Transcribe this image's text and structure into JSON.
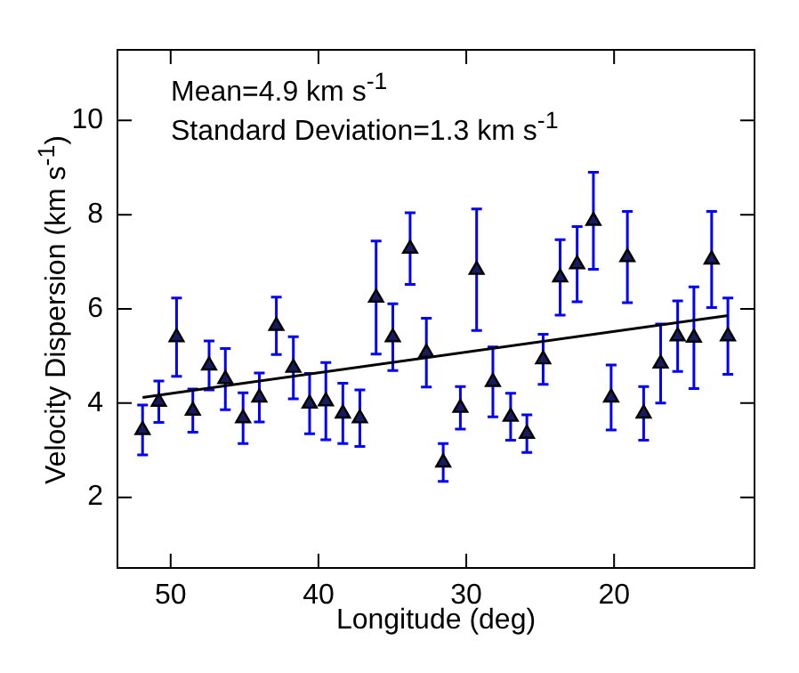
{
  "chart_data": {
    "type": "scatter",
    "xlabel": "Longitude (deg)",
    "ylabel": "Velocity Dispersion (km s$^{-1}$)",
    "annotations": [
      "Mean=4.9 km s$^{-1}$",
      "Standard Deviation=1.3 km s$^{-1}$"
    ],
    "xlim": [
      53.6,
      10.5
    ],
    "xticks": [
      50,
      40,
      30,
      20
    ],
    "ylim": [
      0.5,
      11.5
    ],
    "yticks": [
      2,
      4,
      6,
      8,
      10
    ],
    "grid": false,
    "legend": false,
    "marker": "triangle",
    "series": [
      {
        "color": "#1a1a60",
        "x": [
          51.9,
          50.8,
          49.6,
          48.5,
          47.4,
          46.3,
          45.1,
          44.0,
          42.85,
          41.7,
          40.6,
          39.5,
          38.35,
          37.2,
          36.1,
          34.97,
          33.8,
          32.7,
          31.56,
          30.4,
          29.3,
          28.2,
          27.0,
          25.9,
          24.8,
          23.65,
          22.5,
          21.4,
          20.2,
          19.1,
          18.0,
          16.85,
          15.7,
          14.6,
          13.4,
          12.3
        ],
        "values": [
          3.43,
          4.03,
          5.4,
          3.84,
          4.8,
          4.51,
          3.68,
          4.12,
          5.64,
          4.75,
          3.99,
          4.04,
          3.78,
          3.68,
          6.24,
          5.4,
          7.28,
          5.07,
          2.74,
          3.9,
          6.83,
          4.45,
          3.71,
          3.35,
          4.93,
          6.67,
          6.95,
          7.87,
          4.12,
          7.1,
          3.78,
          4.84,
          5.42,
          5.39,
          7.05,
          5.42
        ],
        "errors": [
          0.53,
          0.44,
          0.83,
          0.46,
          0.52,
          0.65,
          0.54,
          0.52,
          0.61,
          0.66,
          0.64,
          0.82,
          0.64,
          0.6,
          1.2,
          0.71,
          0.76,
          0.73,
          0.4,
          0.45,
          1.29,
          0.74,
          0.5,
          0.4,
          0.53,
          0.8,
          0.8,
          1.03,
          0.69,
          0.97,
          0.57,
          0.84,
          0.75,
          1.08,
          1.02,
          0.81
        ]
      },
      {
        "type": "line",
        "color": "#000000",
        "x": [
          51.9,
          12.3
        ],
        "values": [
          4.12,
          5.86
        ],
        "marker": "none"
      }
    ]
  }
}
